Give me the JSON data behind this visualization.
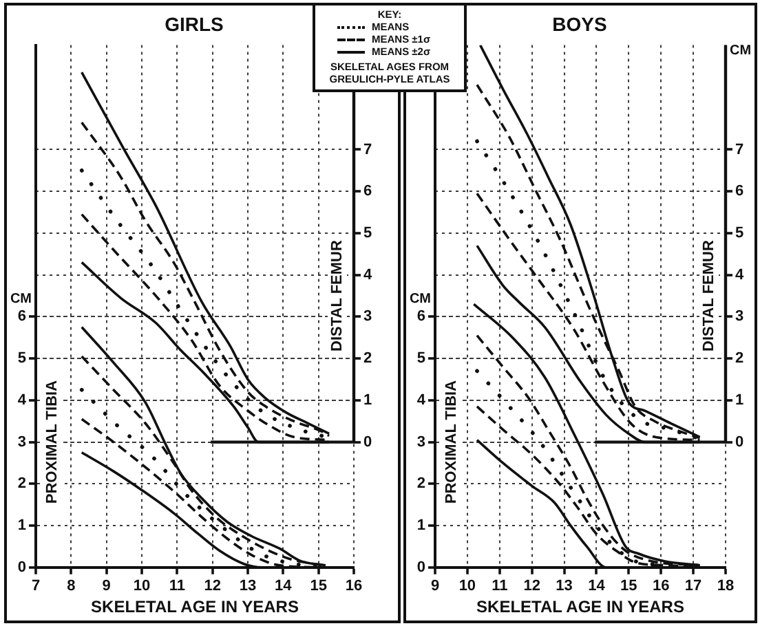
{
  "chart_data": [
    {
      "type": "line",
      "title": "GIRLS",
      "xlabel": "SKELETAL AGE IN YEARS",
      "ylabel": "PROXIMAL TIBIA",
      "y2label": "DISTAL FEMUR",
      "legend_title": "KEY:",
      "legend": "top right",
      "grid": true,
      "xlim": [
        7,
        16
      ],
      "xticks": [
        7,
        8,
        9,
        10,
        11,
        12,
        13,
        14,
        15,
        16
      ],
      "ylim": [
        0,
        12.5
      ],
      "yticks": [
        0,
        1,
        2,
        3,
        4,
        5,
        6
      ],
      "y2lim": [
        -3,
        9.5
      ],
      "y2ticks": [
        0,
        1,
        2,
        3,
        4,
        5,
        6,
        7
      ],
      "ref_lines": [
        {
          "axis": "y2",
          "value": 0
        }
      ],
      "annotations": [
        "CM",
        "SKELETAL AGES FROM GREULICH-PYLE ATLAS"
      ],
      "series": [
        {
          "name": "MEANS",
          "color": "#111111",
          "line_style": "dotted",
          "axis": "y2",
          "x": [
            8.3,
            9.3,
            10.3,
            11.3,
            12.3,
            13.3,
            14.3,
            15.3
          ],
          "values": [
            6.5,
            5.3,
            4.2,
            2.9,
            1.7,
            0.8,
            0.35,
            0.1
          ]
        },
        {
          "name": "MEANS ±1σ",
          "color": "#111111",
          "line_style": "dashed",
          "axis": "y2",
          "x": [
            8.3,
            9.4,
            10.1,
            10.9,
            11.5,
            12.2,
            13.0,
            13.6,
            14.3,
            15.1,
            15.3
          ],
          "values": [
            7.65,
            6.35,
            5.3,
            4.3,
            3.35,
            2.2,
            1.2,
            0.8,
            0.5,
            0.25,
            0.15
          ]
        },
        {
          "name": "MEANS ±2σ",
          "color": "#111111",
          "line_style": "solid",
          "axis": "y2",
          "x": [
            8.3,
            9.5,
            10.4,
            11.7,
            12.5,
            13.0,
            13.5,
            14.1,
            14.7,
            15.3
          ],
          "values": [
            8.85,
            7.0,
            5.65,
            3.35,
            2.3,
            1.5,
            1.05,
            0.7,
            0.45,
            0.2
          ]
        },
        {
          "color": "#111111",
          "line_style": "dashed",
          "axis": "y2",
          "x": [
            8.3,
            9.2,
            10.5,
            11.4,
            12.2,
            13.0,
            13.6,
            14.3,
            15.3
          ],
          "values": [
            5.45,
            4.6,
            3.4,
            2.45,
            1.35,
            0.75,
            0.4,
            0.12,
            0.05
          ]
        },
        {
          "color": "#111111",
          "line_style": "solid",
          "axis": "y2",
          "x": [
            8.3,
            9.4,
            10.4,
            11.1,
            11.7,
            12.6,
            13.0,
            13.3,
            15.3
          ],
          "values": [
            4.3,
            3.45,
            2.85,
            2.2,
            1.7,
            0.85,
            0.35,
            0,
            0
          ]
        },
        {
          "color": "#111111",
          "line_style": "dotted",
          "x": [
            8.3,
            9.3,
            10.3,
            11.3,
            12.3,
            13.3,
            14.2,
            15.2
          ],
          "values": [
            4.25,
            3.4,
            2.65,
            1.7,
            0.95,
            0.35,
            0.1,
            0.03
          ]
        },
        {
          "color": "#111111",
          "line_style": "dashed",
          "x": [
            8.3,
            9.2,
            10.1,
            10.9,
            11.4,
            12.1,
            12.9,
            13.6,
            14.2,
            15.1
          ],
          "values": [
            5.05,
            4.25,
            3.45,
            2.5,
            1.85,
            1.2,
            0.72,
            0.4,
            0.2,
            0.05
          ]
        },
        {
          "color": "#111111",
          "line_style": "solid",
          "x": [
            8.3,
            9.2,
            10.1,
            10.7,
            11.1,
            11.7,
            12.4,
            13.1,
            13.9,
            14.5,
            15.2
          ],
          "values": [
            5.75,
            4.9,
            3.95,
            2.9,
            2.25,
            1.65,
            1.1,
            0.75,
            0.45,
            0.15,
            0.05
          ]
        },
        {
          "color": "#111111",
          "line_style": "dashed",
          "x": [
            8.3,
            9.2,
            10.1,
            11.0,
            11.7,
            12.4,
            13.1,
            13.9,
            15.2
          ],
          "values": [
            3.55,
            3.0,
            2.4,
            1.75,
            1.2,
            0.7,
            0.3,
            0.05,
            0
          ]
        },
        {
          "color": "#111111",
          "line_style": "solid",
          "x": [
            8.3,
            9.2,
            10.0,
            10.9,
            11.6,
            12.2,
            12.9,
            13.4,
            15.2
          ],
          "values": [
            2.75,
            2.3,
            1.85,
            1.3,
            0.8,
            0.4,
            0.08,
            0,
            0
          ]
        }
      ]
    },
    {
      "type": "line",
      "title": "BOYS",
      "xlabel": "SKELETAL AGE IN YEARS",
      "ylabel": "PROXIMAL TIBIA",
      "y2label": "DISTAL FEMUR",
      "grid": true,
      "xlim": [
        9,
        18
      ],
      "xticks": [
        9,
        10,
        11,
        12,
        13,
        14,
        15,
        16,
        17,
        18
      ],
      "ylim": [
        0,
        12.5
      ],
      "yticks": [
        0,
        1,
        2,
        3,
        4,
        5,
        6
      ],
      "y2lim": [
        -3,
        9.5
      ],
      "y2ticks": [
        0,
        1,
        2,
        3,
        4,
        5,
        6,
        7
      ],
      "ref_lines": [
        {
          "axis": "y2",
          "value": 0
        }
      ],
      "annotations": [
        "CM",
        "CM"
      ],
      "series": [
        {
          "color": "#111111",
          "line_style": "dotted",
          "axis": "y2",
          "x": [
            10.3,
            11.3,
            12.3,
            13.3,
            14.3,
            15.3,
            16.3,
            17.2
          ],
          "values": [
            7.2,
            6.0,
            4.65,
            3.1,
            1.45,
            0.55,
            0.3,
            0.08
          ]
        },
        {
          "color": "#111111",
          "line_style": "dashed",
          "axis": "y2",
          "x": [
            10.3,
            11.3,
            12.1,
            12.9,
            13.7,
            14.2,
            14.7,
            15.2,
            15.8,
            16.6,
            17.2
          ],
          "values": [
            8.55,
            7.3,
            6.05,
            4.8,
            3.35,
            2.5,
            1.7,
            0.85,
            0.5,
            0.25,
            0.1
          ]
        },
        {
          "color": "#111111",
          "line_style": "solid",
          "axis": "y2",
          "x": [
            10.4,
            11.1,
            11.9,
            12.5,
            13.2,
            13.9,
            14.5,
            15.0,
            15.5,
            16.3,
            17.2
          ],
          "values": [
            9.5,
            8.45,
            7.3,
            6.35,
            5.2,
            3.55,
            2.0,
            0.95,
            0.75,
            0.45,
            0.12
          ]
        },
        {
          "color": "#111111",
          "line_style": "dashed",
          "axis": "y2",
          "x": [
            10.3,
            11.3,
            12.1,
            13.3,
            14.2,
            15.0,
            15.5,
            16.2,
            17.2
          ],
          "values": [
            5.95,
            4.85,
            4.0,
            2.7,
            1.45,
            0.5,
            0.2,
            0.08,
            0.05
          ]
        },
        {
          "color": "#111111",
          "line_style": "solid",
          "axis": "y2",
          "x": [
            10.3,
            11.1,
            11.6,
            12.4,
            13.5,
            14.3,
            15.0,
            15.5,
            17.2
          ],
          "values": [
            4.7,
            3.75,
            3.35,
            2.75,
            1.45,
            0.65,
            0.2,
            0,
            0
          ]
        },
        {
          "color": "#111111",
          "line_style": "dotted",
          "x": [
            10.3,
            11.3,
            12.3,
            13.3,
            14.3,
            15.2,
            16.2
          ],
          "values": [
            4.7,
            3.85,
            2.95,
            1.8,
            0.7,
            0.15,
            0.05
          ]
        },
        {
          "color": "#111111",
          "line_style": "dashed",
          "x": [
            10.3,
            11.1,
            11.9,
            12.5,
            13.2,
            13.7,
            14.3,
            14.9,
            15.7,
            17.2
          ],
          "values": [
            5.55,
            4.8,
            4.05,
            3.3,
            2.4,
            1.65,
            0.9,
            0.4,
            0.15,
            0.05
          ]
        },
        {
          "color": "#111111",
          "line_style": "solid",
          "x": [
            10.2,
            11.4,
            12.4,
            13.3,
            14.2,
            14.9,
            15.3,
            16.1,
            17.2
          ],
          "values": [
            6.3,
            5.5,
            4.55,
            3.2,
            1.75,
            0.5,
            0.33,
            0.15,
            0.05
          ]
        },
        {
          "color": "#111111",
          "line_style": "dashed",
          "x": [
            10.3,
            11.1,
            12.0,
            12.8,
            13.4,
            14.0,
            14.7,
            15.2,
            16.1,
            17.2
          ],
          "values": [
            3.85,
            3.3,
            2.7,
            2.05,
            1.45,
            0.8,
            0.35,
            0.12,
            0.05,
            0.02
          ]
        },
        {
          "color": "#111111",
          "line_style": "solid",
          "x": [
            10.3,
            11.1,
            12.0,
            12.7,
            13.2,
            13.7,
            14.3,
            17.2
          ],
          "values": [
            3.05,
            2.5,
            1.95,
            1.55,
            1.0,
            0.5,
            0,
            0
          ]
        }
      ]
    }
  ]
}
